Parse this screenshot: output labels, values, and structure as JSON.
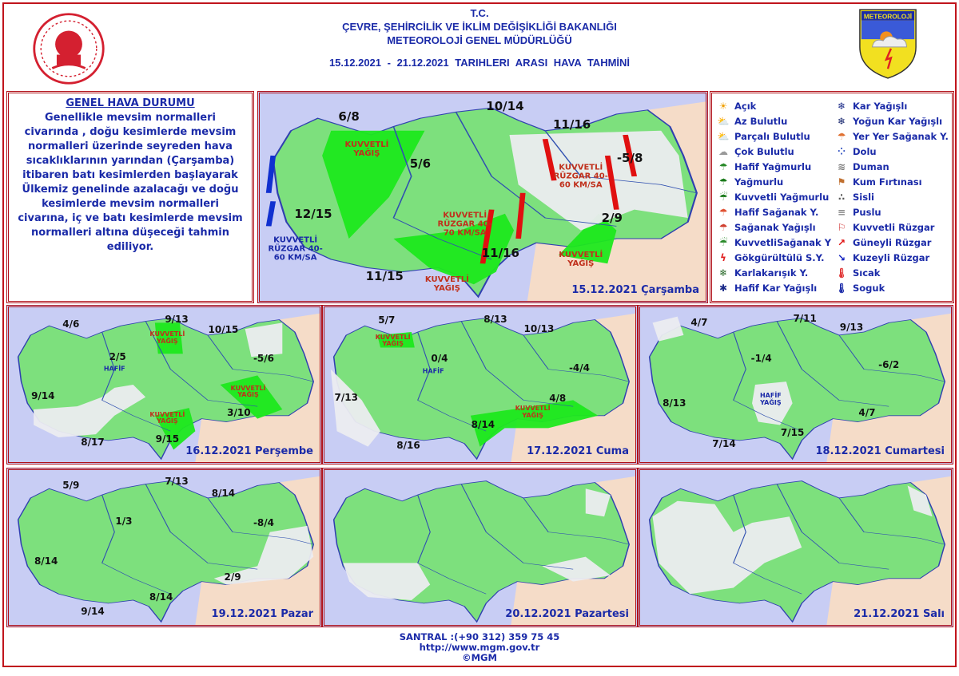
{
  "header": {
    "line1": "T.C.",
    "line2": "ÇEVRE, ŞEHİRCİLİK VE İKLİM DEĞİŞİKLİĞİ BAKANLIĞI",
    "line3": "METEOROLOJİ GENEL MÜDÜRLÜĞÜ",
    "dates": "15.12.2021 - 21.12.2021 TARIHLERI ARASI HAVA TAHMİNİ",
    "logo_text": "METEOROLOJİ"
  },
  "general": {
    "title": "GENEL HAVA DURUMU",
    "text": "Genellikle mevsim normalleri civarında , doğu kesimlerde mevsim normalleri üzerinde seyreden hava sıcaklıklarının yarından (Çarşamba) itibaren batı kesimlerden başlayarak Ülkemiz genelinde azalacağı ve doğu kesimlerde mevsim normalleri civarına, iç ve batı kesimlerde mevsim normalleri altına düşeceği tahmin ediliyor."
  },
  "colors": {
    "sea": "#c8cdf4",
    "land": "#7de07d",
    "heavy": "#1ee81e",
    "neighbor": "#f5dcc8",
    "cloudy": "#ececf0",
    "text": "#1a2aa8",
    "border": "#c0141c"
  },
  "legend": [
    {
      "label": "Açık",
      "icon": "sun-icon"
    },
    {
      "label": "Az Bulutlu",
      "icon": "sun-cloud-icon"
    },
    {
      "label": "Parçalı Bulutlu",
      "icon": "partly-cloudy-icon"
    },
    {
      "label": "Çok Bulutlu",
      "icon": "cloudy-icon"
    },
    {
      "label": "Hafif Yağmurlu",
      "icon": "light-rain-icon"
    },
    {
      "label": "Yağmurlu",
      "icon": "rain-icon"
    },
    {
      "label": "Kuvvetli Yağmurlu",
      "icon": "heavy-rain-icon"
    },
    {
      "label": "Hafif Sağanak Y.",
      "icon": "light-shower-icon"
    },
    {
      "label": "Sağanak Yağışlı",
      "icon": "shower-icon"
    },
    {
      "label": "KuvvetliSağanak Y",
      "icon": "heavy-shower-icon"
    },
    {
      "label": "Gökgürültülü S.Y.",
      "icon": "thunderstorm-icon"
    },
    {
      "label": "Karlakarışık Y.",
      "icon": "sleet-icon"
    },
    {
      "label": "Hafif Kar Yağışlı",
      "icon": "light-snow-icon"
    },
    {
      "label": "Kar Yağışlı",
      "icon": "snow-icon"
    },
    {
      "label": "Yoğun Kar Yağışlı",
      "icon": "heavy-snow-icon"
    },
    {
      "label": "Yer Yer Sağanak Y.",
      "icon": "local-shower-icon"
    },
    {
      "label": "Dolu",
      "icon": "hail-icon"
    },
    {
      "label": "Duman",
      "icon": "smoke-icon"
    },
    {
      "label": "Kum Fırtınası",
      "icon": "sandstorm-icon"
    },
    {
      "label": "Sisli",
      "icon": "fog-icon"
    },
    {
      "label": "Puslu",
      "icon": "haze-icon"
    },
    {
      "label": "Kuvvetli Rüzgar",
      "icon": "windsock-icon"
    },
    {
      "label": "Güneyli Rüzgar",
      "icon": "arrow-northeast-icon"
    },
    {
      "label": "Kuzeyli Rüzgar",
      "icon": "arrow-southeast-icon"
    },
    {
      "label": "Sıcak",
      "icon": "thermometer-hot-icon"
    },
    {
      "label": "Soguk",
      "icon": "thermometer-cold-icon"
    }
  ],
  "maps": [
    {
      "date": "15.12.2021 Çarşamba",
      "temps": [
        "6/8",
        "10/14",
        "11/16",
        "5/6",
        "-5/8",
        "12/15",
        "2/9",
        "11/16",
        "11/15"
      ],
      "annotations": [
        "KUVVETLİ YAĞIŞ",
        "KUVVETLİ YAĞIŞ",
        "KUVVETLİ YAĞIŞ",
        "KUVVETLİ RÜZGAR 40-60 KM/SA",
        "KUVVETLİ RÜZGAR 40-70 KM/SA",
        "KUVVETLİ RÜZGAR 40-60 KM/SA"
      ]
    },
    {
      "date": "16.12.2021 Perşembe",
      "temps": [
        "4/6",
        "9/13",
        "10/15",
        "2/5",
        "-5/6",
        "9/14",
        "3/10",
        "9/15",
        "8/17"
      ],
      "annotations": [
        "HAFİF",
        "KUVVETLİ YAĞIŞ",
        "KUVVETLİ YAĞIŞ",
        "KUVVETLİ YAĞIŞ"
      ]
    },
    {
      "date": "17.12.2021 Cuma",
      "temps": [
        "5/7",
        "8/13",
        "10/13",
        "0/4",
        "-4/4",
        "7/13",
        "4/8",
        "8/14",
        "8/16"
      ],
      "annotations": [
        "HAFİF",
        "KUVVETLİ YAĞIŞ",
        "KUVVETLİ YAĞIŞ"
      ]
    },
    {
      "date": "18.12.2021 Cumartesi",
      "temps": [
        "4/7",
        "7/11",
        "9/13",
        "-1/4",
        "-6/2",
        "8/13",
        "4/7",
        "7/15",
        "7/14"
      ],
      "annotations": [
        "HAFİF YAĞIŞ"
      ]
    },
    {
      "date": "19.12.2021 Pazar",
      "temps": [
        "5/9",
        "7/13",
        "8/14",
        "1/3",
        "-8/4",
        "8/14",
        "2/9",
        "8/14",
        "9/14"
      ],
      "annotations": []
    },
    {
      "date": "20.12.2021 Pazartesi",
      "temps": [],
      "annotations": []
    },
    {
      "date": "21.12.2021 Salı",
      "temps": [],
      "annotations": []
    }
  ],
  "footer": {
    "phone": "SANTRAL :(+90 312) 359 75 45",
    "url": "http://www.mgm.gov.tr",
    "copyright": "©MGM"
  }
}
